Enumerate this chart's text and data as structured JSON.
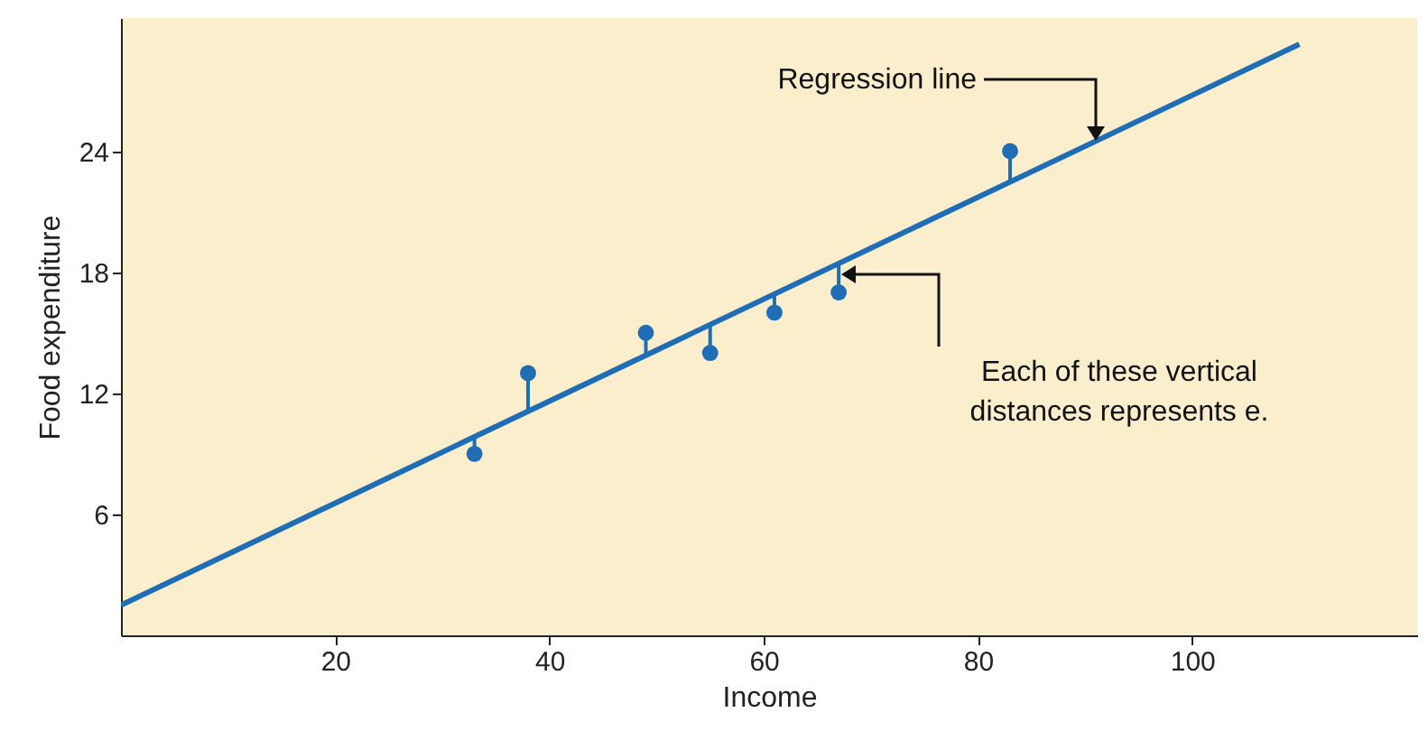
{
  "chart_data": {
    "type": "scatter",
    "xlabel": "Income",
    "ylabel": "Food expenditure",
    "xlim": [
      0,
      121
    ],
    "ylim": [
      0,
      30.6
    ],
    "xticks": [
      20,
      40,
      60,
      80,
      100
    ],
    "yticks": [
      6,
      12,
      18,
      24
    ],
    "grid": false,
    "marker": "circle",
    "series": [
      {
        "color": "#1f6db5",
        "x": [
          33,
          38,
          49,
          55,
          61,
          67,
          83
        ],
        "values": [
          9,
          13,
          15,
          14,
          16,
          17,
          24
        ],
        "errors": [
          [
            9,
            9.8
          ],
          [
            11.1,
            13
          ],
          [
            13.9,
            15
          ],
          [
            14,
            15.4
          ],
          [
            16,
            16.9
          ],
          [
            17,
            18.4
          ],
          [
            22.5,
            24
          ]
        ]
      },
      {
        "type": "line",
        "marker": "none",
        "line_style": "solid",
        "color": "#1f6db5",
        "x": [
          0,
          110
        ],
        "values": [
          1.5,
          29.3
        ]
      }
    ],
    "annotations": [
      "Regression line",
      "Each of these vertical\ndistances represents e."
    ]
  }
}
